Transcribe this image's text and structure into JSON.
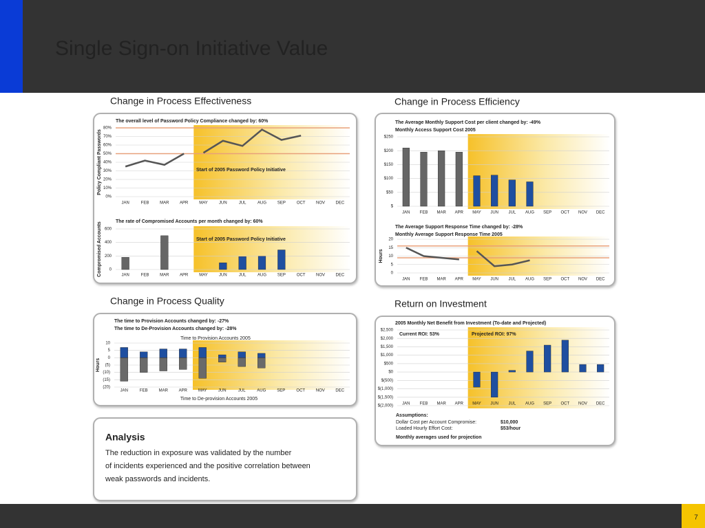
{
  "slide": {
    "title": "Single Sign-on Initiative Value",
    "page_number": "7"
  },
  "sections": [
    "Change in Process Effectiveness",
    "Change in Process Efficiency",
    "Change in Process Quality",
    "Return on Investment"
  ],
  "chart_data": [
    {
      "type": "line",
      "title": "The overall level of Password Policy Compliance changed by: 60%",
      "y_label": "Policy Compliant Passwords",
      "categories": [
        "JAN",
        "FEB",
        "MAR",
        "APR",
        "MAY",
        "JUN",
        "JUL",
        "AUG",
        "SEP",
        "OCT",
        "NOV",
        "DEC"
      ],
      "values": [
        35,
        42,
        37,
        50,
        51,
        65,
        59,
        78,
        66,
        71,
        null,
        null
      ],
      "color": "#555555",
      "ylim": [
        0,
        80
      ],
      "yticks": [
        {
          "value": 0,
          "label": "0%"
        },
        {
          "value": 10,
          "label": "10%"
        },
        {
          "value": 20,
          "label": "20%"
        },
        {
          "value": 30,
          "label": "30%"
        },
        {
          "value": 40,
          "label": "40%"
        },
        {
          "value": 50,
          "label": "50%"
        },
        {
          "value": 60,
          "label": "60%"
        },
        {
          "value": 70,
          "label": "70%"
        },
        {
          "value": 80,
          "label": "80%"
        }
      ],
      "reference_lines": [
        50,
        80
      ],
      "reference_color": "#e8a07a",
      "highlight_start": "MAY",
      "annotation": "Start of 2005 Password Policy Initiative",
      "grid": true
    },
    {
      "type": "bar",
      "title": "The rate of Compromised Accounts per month changed by: 60%",
      "y_label": "Compromised Accounts",
      "categories": [
        "JAN",
        "FEB",
        "MAR",
        "APR",
        "MAY",
        "JUN",
        "JUL",
        "AUG",
        "SEP",
        "OCT",
        "NOV",
        "DEC"
      ],
      "values": [
        180,
        null,
        500,
        null,
        null,
        100,
        190,
        195,
        290,
        null,
        null,
        null
      ],
      "color": "#666666",
      "highlight_color": "#1f4fa0",
      "ylim": [
        0,
        600
      ],
      "yticks": [
        0,
        200,
        400,
        600
      ],
      "highlight_start": "MAY",
      "annotation": "Start of 2005 Password Policy Initiative",
      "grid": true
    },
    {
      "type": "bar",
      "title": "The Average Monthly Support Cost per client changed by: -49%",
      "subtitle": "Monthly Access Support Cost 2005",
      "categories": [
        "JAN",
        "FEB",
        "MAR",
        "APR",
        "MAY",
        "JUN",
        "JUL",
        "AUG",
        "SEP",
        "OCT",
        "NOV",
        "DEC"
      ],
      "values": [
        210,
        195,
        200,
        195,
        110,
        112,
        95,
        88,
        null,
        null,
        null,
        null
      ],
      "color": "#666666",
      "highlight_color": "#1f4fa0",
      "ylim": [
        0,
        250
      ],
      "yticks": [
        {
          "value": 0,
          "label": "$"
        },
        {
          "value": 50,
          "label": "$50"
        },
        {
          "value": 100,
          "label": "$100"
        },
        {
          "value": 150,
          "label": "$150"
        },
        {
          "value": 200,
          "label": "$200"
        },
        {
          "value": 250,
          "label": "$250"
        }
      ],
      "highlight_start": "MAY",
      "grid": true
    },
    {
      "type": "line",
      "title": "The Average Support Response Time changed by: -28%",
      "subtitle": "Monthly Average Support Response Time 2005",
      "y_label": "Hours",
      "categories": [
        "JAN",
        "FEB",
        "MAR",
        "APR",
        "MAY",
        "JUN",
        "JUL",
        "AUG",
        "SEP",
        "OCT",
        "NOV",
        "DEC"
      ],
      "values": [
        15,
        10,
        9,
        8,
        13,
        4,
        5,
        7.5,
        null,
        null,
        null,
        null
      ],
      "color": "#555555",
      "ylim": [
        0,
        20
      ],
      "yticks": [
        0,
        5,
        10,
        15,
        20
      ],
      "reference_lines": [
        16,
        9
      ],
      "reference_color": "#e8a07a",
      "highlight_start": "MAY",
      "grid": true
    },
    {
      "type": "bar",
      "title": "The time to Provision Accounts changed by: -27%",
      "subtitle": "The time to De-Provision Accounts changed by: -28%",
      "y_label": "Hours",
      "categories": [
        "JAN",
        "FEB",
        "MAR",
        "APR",
        "MAY",
        "JUN",
        "JUL",
        "AUG",
        "SEP",
        "OCT",
        "NOV",
        "DEC"
      ],
      "series": [
        {
          "name": "Time to Provision Accounts 2005",
          "color": "#1f4fa0",
          "values": [
            7,
            4,
            6,
            6,
            7,
            2,
            4,
            3,
            null,
            null,
            null,
            null
          ]
        },
        {
          "name": "Time to De-provision Accounts 2005",
          "color": "#6a6a6a",
          "values": [
            -16,
            -10,
            -9,
            -8,
            -14,
            -3,
            -6,
            -7,
            null,
            null,
            null,
            null
          ]
        }
      ],
      "ylim": [
        -20,
        10
      ],
      "yticks": [
        {
          "value": -20,
          "label": "(20)"
        },
        {
          "value": -15,
          "label": "(15)"
        },
        {
          "value": -10,
          "label": "(10)"
        },
        {
          "value": -5,
          "label": "(5)"
        },
        0,
        5,
        10
      ],
      "highlight_start": "MAY",
      "grid": true
    },
    {
      "type": "bar",
      "title": "2005 Monthly Net Benefit from Investment (To-date and Projected)",
      "categories": [
        "JAN",
        "FEB",
        "MAR",
        "APR",
        "MAY",
        "JUN",
        "JUL",
        "AUG",
        "SEP",
        "OCT",
        "NOV",
        "DEC"
      ],
      "values": [
        null,
        null,
        null,
        null,
        -900,
        -1500,
        100,
        1250,
        1600,
        1900,
        450,
        450
      ],
      "color": "#1f4fa0",
      "ylim": [
        -2000,
        2500
      ],
      "yticks": [
        {
          "value": -2000,
          "label": "$(2,000)"
        },
        {
          "value": -1500,
          "label": "$(1,500)"
        },
        {
          "value": -1000,
          "label": "$(1,000)"
        },
        {
          "value": -500,
          "label": "$(500)"
        },
        {
          "value": 0,
          "label": "$0"
        },
        {
          "value": 500,
          "label": "$500"
        },
        {
          "value": 1000,
          "label": "$1,000"
        },
        {
          "value": 1500,
          "label": "$1,500"
        },
        {
          "value": 2000,
          "label": "$2,000"
        },
        {
          "value": 2500,
          "label": "$2,500"
        }
      ],
      "annotations": [
        "Current ROI: 53%",
        "Projected ROI: 97%"
      ],
      "highlight_start": "MAY",
      "grid": true
    }
  ],
  "assumptions": {
    "title": "Assumptions:",
    "rows": [
      [
        "Dollar Cost per Account Compromise:",
        "$10,000"
      ],
      [
        "Loaded Hourly Effort Cost:",
        "$53/hour"
      ]
    ],
    "note": "Monthly averages used for projection"
  },
  "analysis": {
    "title": "Analysis",
    "lines": [
      "The reduction in exposure was validated by the number",
      "of incidents experienced and the positive correlation between",
      "weak passwords and incidents."
    ]
  }
}
